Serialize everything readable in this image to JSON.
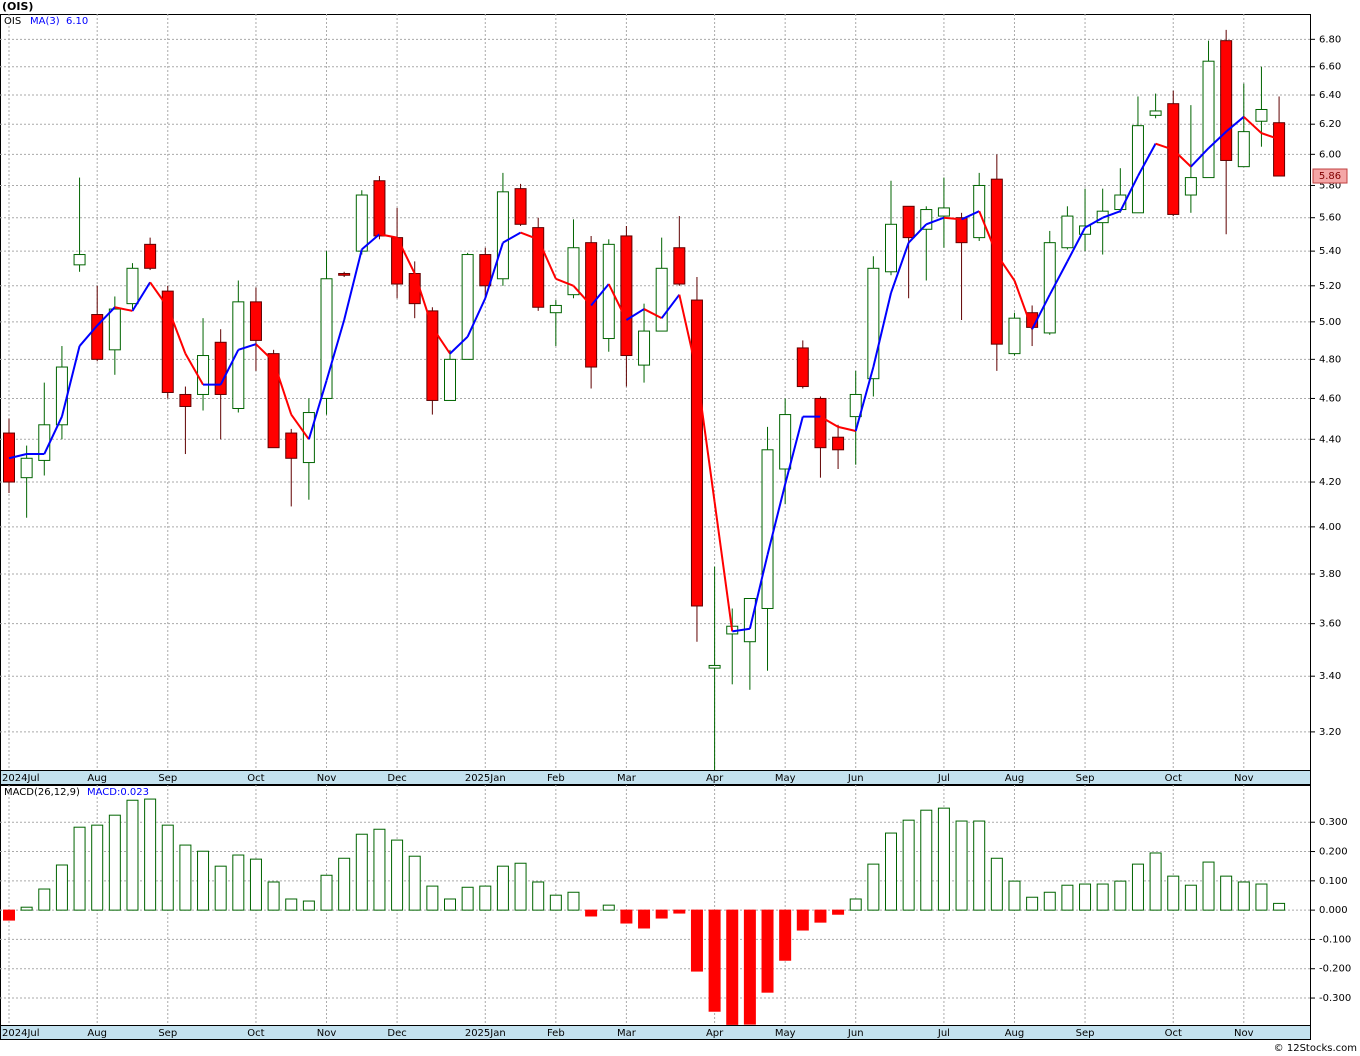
{
  "chart_data": [
    {
      "type": "candlestick",
      "title": "(OIS)",
      "symbol": "OIS",
      "ma_name": "MA(3)",
      "ma_last_label": "6.10",
      "last_close_label": "5.86",
      "categories": [
        "2024Jul",
        null,
        null,
        null,
        null,
        "Aug",
        null,
        null,
        null,
        "Sep",
        null,
        null,
        null,
        null,
        "Oct",
        null,
        null,
        null,
        "Nov",
        null,
        null,
        null,
        "Dec",
        null,
        null,
        null,
        null,
        "2025Jan",
        null,
        null,
        null,
        "Feb",
        null,
        null,
        null,
        "Mar",
        null,
        null,
        null,
        null,
        "Apr",
        null,
        null,
        null,
        "May",
        null,
        null,
        null,
        "Jun",
        null,
        null,
        null,
        null,
        "Jul",
        null,
        null,
        null,
        "Aug",
        null,
        null,
        null,
        "Sep",
        null,
        null,
        null,
        null,
        "Oct",
        null,
        null,
        null,
        "Nov",
        null,
        null
      ],
      "open": [
        4.43,
        4.22,
        4.3,
        4.47,
        5.32,
        5.04,
        4.85,
        5.1,
        5.44,
        5.17,
        4.62,
        4.62,
        4.89,
        4.55,
        5.11,
        4.83,
        4.43,
        4.29,
        4.6,
        5.27,
        5.4,
        5.83,
        5.48,
        5.27,
        5.06,
        4.59,
        4.8,
        5.38,
        5.24,
        5.78,
        5.54,
        5.05,
        5.15,
        5.45,
        4.91,
        5.49,
        4.77,
        4.95,
        5.42,
        5.12,
        3.43,
        3.56,
        3.53,
        3.66,
        4.26,
        4.86,
        4.6,
        4.41,
        4.51,
        4.7,
        5.28,
        5.67,
        5.53,
        5.61,
        5.6,
        5.48,
        5.84,
        4.83,
        5.05,
        4.94,
        5.42,
        5.5,
        5.57,
        5.65,
        5.63,
        6.26,
        6.34,
        5.74,
        5.85,
        6.79,
        5.92,
        6.22,
        6.21
      ],
      "high": [
        4.5,
        4.37,
        4.68,
        4.87,
        5.85,
        5.2,
        5.14,
        5.33,
        5.48,
        5.2,
        4.66,
        5.02,
        4.96,
        5.23,
        5.19,
        4.85,
        4.45,
        4.6,
        5.4,
        5.28,
        5.77,
        5.86,
        5.66,
        5.34,
        5.08,
        4.85,
        5.39,
        5.42,
        5.88,
        5.81,
        5.6,
        5.12,
        5.59,
        5.49,
        5.47,
        5.55,
        5.1,
        5.48,
        5.61,
        5.25,
        3.83,
        3.66,
        3.7,
        4.46,
        4.6,
        4.9,
        4.61,
        4.47,
        4.74,
        5.37,
        5.83,
        5.67,
        5.67,
        5.85,
        5.63,
        5.88,
        6.0,
        5.05,
        5.09,
        5.52,
        5.67,
        5.78,
        5.78,
        5.91,
        6.39,
        6.41,
        6.43,
        6.33,
        6.79,
        6.87,
        6.48,
        6.6,
        6.39
      ],
      "low": [
        4.15,
        4.04,
        4.23,
        4.4,
        5.28,
        4.79,
        4.72,
        5.07,
        5.29,
        4.6,
        4.33,
        4.54,
        4.4,
        4.53,
        4.74,
        4.36,
        4.09,
        4.12,
        4.52,
        5.25,
        5.38,
        5.47,
        5.13,
        5.02,
        4.52,
        4.59,
        4.8,
        5.13,
        5.2,
        5.55,
        5.06,
        4.87,
        5.13,
        4.65,
        4.84,
        4.66,
        4.68,
        4.95,
        5.2,
        3.53,
        3.07,
        3.37,
        3.35,
        3.42,
        4.1,
        4.65,
        4.22,
        4.26,
        4.28,
        4.61,
        5.26,
        5.13,
        5.23,
        5.42,
        5.01,
        5.46,
        4.74,
        4.82,
        4.87,
        4.93,
        5.41,
        5.4,
        5.38,
        5.63,
        5.63,
        6.24,
        5.61,
        5.63,
        5.85,
        5.5,
        5.92,
        6.05,
        5.86
      ],
      "close": [
        4.2,
        4.31,
        4.47,
        4.76,
        5.38,
        4.8,
        5.07,
        5.3,
        5.3,
        4.63,
        4.56,
        4.82,
        4.62,
        5.11,
        4.9,
        4.36,
        4.31,
        4.53,
        5.24,
        5.26,
        5.74,
        5.49,
        5.21,
        5.1,
        4.59,
        4.8,
        5.38,
        5.2,
        5.76,
        5.56,
        5.08,
        5.09,
        5.42,
        4.76,
        5.44,
        4.82,
        4.95,
        5.3,
        5.21,
        3.67,
        3.44,
        3.59,
        3.7,
        4.35,
        4.52,
        4.66,
        4.36,
        4.35,
        4.62,
        5.3,
        5.56,
        5.48,
        5.65,
        5.66,
        5.45,
        5.8,
        4.88,
        5.02,
        4.97,
        5.45,
        5.61,
        5.55,
        5.64,
        5.74,
        6.19,
        6.29,
        5.62,
        5.85,
        6.64,
        5.96,
        6.15,
        6.3,
        5.86
      ],
      "ma": [
        4.31,
        4.33,
        4.33,
        4.51,
        4.87,
        4.98,
        5.08,
        5.06,
        5.22,
        5.08,
        4.83,
        4.67,
        4.67,
        4.85,
        4.88,
        4.79,
        4.52,
        4.4,
        4.69,
        5.01,
        5.41,
        5.5,
        5.48,
        5.27,
        4.97,
        4.83,
        4.92,
        5.13,
        5.45,
        5.51,
        5.47,
        5.24,
        5.2,
        5.09,
        5.21,
        5.01,
        5.07,
        5.02,
        5.15,
        4.73,
        4.11,
        3.57,
        3.58,
        3.88,
        4.19,
        4.51,
        4.51,
        4.46,
        4.44,
        4.76,
        5.16,
        5.45,
        5.56,
        5.6,
        5.59,
        5.64,
        5.38,
        5.23,
        4.96,
        5.15,
        5.34,
        5.54,
        5.6,
        5.64,
        5.86,
        6.07,
        6.03,
        5.92,
        6.04,
        6.15,
        6.25,
        6.14,
        6.1
      ],
      "up_color": "#ffffff",
      "up_edge": "#006400",
      "down_color": "#ff0000",
      "down_edge": "#600000",
      "ma_up_color": "#0000ff",
      "ma_down_color": "#ff0000",
      "ylim": [
        3.07,
        6.99
      ],
      "log_scale": true,
      "grid": true,
      "yticks": [
        {
          "value": 3.2,
          "label": "3.20"
        },
        {
          "value": 3.4,
          "label": "3.40"
        },
        {
          "value": 3.6,
          "label": "3.60"
        },
        {
          "value": 3.8,
          "label": "3.80"
        },
        {
          "value": 4.0,
          "label": "4.00"
        },
        {
          "value": 4.2,
          "label": "4.20"
        },
        {
          "value": 4.4,
          "label": "4.40"
        },
        {
          "value": 4.6,
          "label": "4.60"
        },
        {
          "value": 4.8,
          "label": "4.80"
        },
        {
          "value": 5.0,
          "label": "5.00"
        },
        {
          "value": 5.2,
          "label": "5.20"
        },
        {
          "value": 5.4,
          "label": "5.40"
        },
        {
          "value": 5.6,
          "label": "5.60"
        },
        {
          "value": 5.8,
          "label": "5.80"
        },
        {
          "value": 6.0,
          "label": "6.00"
        },
        {
          "value": 6.2,
          "label": "6.20"
        },
        {
          "value": 6.4,
          "label": "6.40"
        },
        {
          "value": 6.6,
          "label": "6.60"
        },
        {
          "value": 6.8,
          "label": "6.80"
        }
      ]
    },
    {
      "type": "macd",
      "title": "MACD(26,12,9)",
      "value_label": "MACD:0.023",
      "values": [
        -0.034,
        0.01,
        0.072,
        0.154,
        0.283,
        0.29,
        0.324,
        0.375,
        0.379,
        0.29,
        0.222,
        0.201,
        0.15,
        0.188,
        0.174,
        0.096,
        0.038,
        0.031,
        0.119,
        0.177,
        0.259,
        0.276,
        0.239,
        0.184,
        0.082,
        0.038,
        0.078,
        0.082,
        0.15,
        0.16,
        0.096,
        0.051,
        0.061,
        -0.02,
        0.017,
        -0.044,
        -0.061,
        -0.027,
        -0.01,
        -0.208,
        -0.345,
        -0.39,
        -0.389,
        -0.28,
        -0.171,
        -0.068,
        -0.041,
        -0.014,
        0.038,
        0.157,
        0.263,
        0.307,
        0.341,
        0.348,
        0.304,
        0.304,
        0.177,
        0.099,
        0.044,
        0.061,
        0.085,
        0.089,
        0.089,
        0.099,
        0.157,
        0.195,
        0.116,
        0.085,
        0.164,
        0.116,
        0.096,
        0.089,
        0.023
      ],
      "pos_color": "#ffffff",
      "pos_edge": "#006400",
      "neg_color": "#ff0000",
      "neg_edge": "#ff0000",
      "ylim": [
        -0.392,
        0.427
      ],
      "grid": true,
      "yticks": [
        {
          "value": 0.3,
          "label": "0.300"
        },
        {
          "value": 0.2,
          "label": "0.200"
        },
        {
          "value": 0.1,
          "label": "0.100"
        },
        {
          "value": 0,
          "label": "0.000"
        },
        {
          "value": -0.1,
          "label": "-0.100"
        },
        {
          "value": -0.2,
          "label": "-0.200"
        },
        {
          "value": -0.3,
          "label": "-0.300"
        }
      ]
    }
  ],
  "footer": "© 12Stocks.com"
}
